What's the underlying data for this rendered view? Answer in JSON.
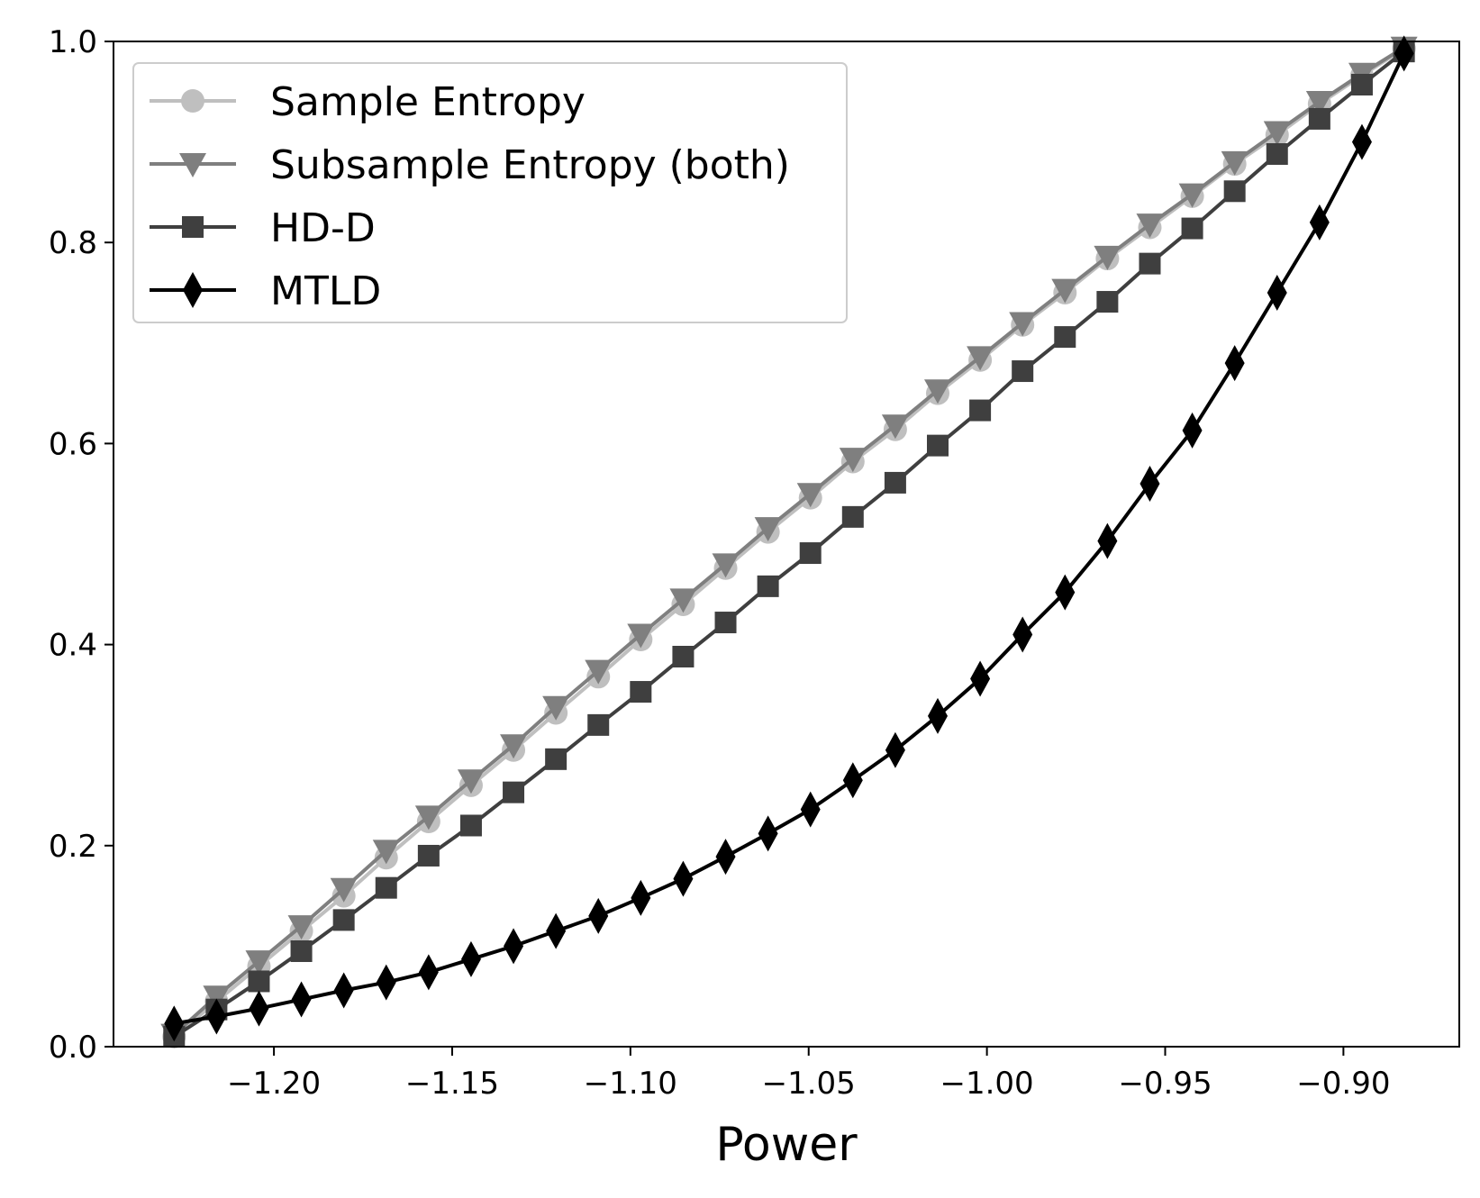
{
  "chart_data": {
    "type": "line",
    "title": "",
    "xlabel": "Power",
    "ylabel": "",
    "xlim": [
      -1.245,
      -0.8675
    ],
    "ylim": [
      0.0,
      1.0
    ],
    "x_ticks": [
      -1.2,
      -1.15,
      -1.1,
      -1.05,
      -1.0,
      -0.95,
      -0.9
    ],
    "x_tick_labels": [
      "−1.20",
      "−1.15",
      "−1.10",
      "−1.05",
      "−1.00",
      "−0.95",
      "−0.90"
    ],
    "y_ticks": [
      0.0,
      0.2,
      0.4,
      0.6,
      0.8,
      1.0
    ],
    "y_tick_labels": [
      "0.0",
      "0.2",
      "0.4",
      "0.6",
      "0.8",
      "1.0"
    ],
    "grid": false,
    "legend_position": "top-left",
    "x": [
      -1.228,
      -1.2161,
      -1.2042,
      -1.1923,
      -1.1804,
      -1.1685,
      -1.1566,
      -1.1447,
      -1.1328,
      -1.1209,
      -1.109,
      -1.0971,
      -1.0852,
      -1.0733,
      -1.0614,
      -1.0495,
      -1.0376,
      -1.0257,
      -1.0138,
      -1.0019,
      -0.99,
      -0.9781,
      -0.9662,
      -0.9543,
      -0.9424,
      -0.9305,
      -0.9186,
      -0.9067,
      -0.8948,
      -0.883
    ],
    "series": [
      {
        "name": "Sample Entropy",
        "marker": "circle",
        "color": "#bfbfbf",
        "values": [
          0.01,
          0.045,
          0.08,
          0.115,
          0.15,
          0.188,
          0.224,
          0.26,
          0.295,
          0.332,
          0.368,
          0.405,
          0.44,
          0.476,
          0.512,
          0.546,
          0.582,
          0.614,
          0.65,
          0.683,
          0.718,
          0.75,
          0.784,
          0.815,
          0.846,
          0.878,
          0.907,
          0.938,
          0.966,
          0.993
        ]
      },
      {
        "name": "Subsample Entropy (both)",
        "marker": "triangle-down",
        "color": "#7f7f7f",
        "values": [
          0.012,
          0.05,
          0.085,
          0.12,
          0.157,
          0.195,
          0.229,
          0.265,
          0.3,
          0.338,
          0.374,
          0.41,
          0.445,
          0.48,
          0.516,
          0.55,
          0.585,
          0.618,
          0.653,
          0.686,
          0.72,
          0.753,
          0.786,
          0.818,
          0.848,
          0.88,
          0.91,
          0.94,
          0.968,
          0.994
        ]
      },
      {
        "name": "HD-D",
        "marker": "square",
        "color": "#3f3f3f",
        "values": [
          0.01,
          0.037,
          0.065,
          0.095,
          0.126,
          0.158,
          0.19,
          0.22,
          0.253,
          0.286,
          0.32,
          0.353,
          0.388,
          0.422,
          0.458,
          0.491,
          0.527,
          0.561,
          0.598,
          0.633,
          0.672,
          0.706,
          0.741,
          0.779,
          0.814,
          0.851,
          0.888,
          0.923,
          0.957,
          0.99
        ]
      },
      {
        "name": "MTLD",
        "marker": "diamond",
        "color": "#000000",
        "values": [
          0.023,
          0.03,
          0.038,
          0.047,
          0.056,
          0.064,
          0.074,
          0.087,
          0.1,
          0.115,
          0.13,
          0.148,
          0.167,
          0.189,
          0.212,
          0.236,
          0.265,
          0.295,
          0.329,
          0.366,
          0.41,
          0.452,
          0.503,
          0.56,
          0.613,
          0.68,
          0.75,
          0.82,
          0.9,
          0.988
        ]
      }
    ]
  }
}
